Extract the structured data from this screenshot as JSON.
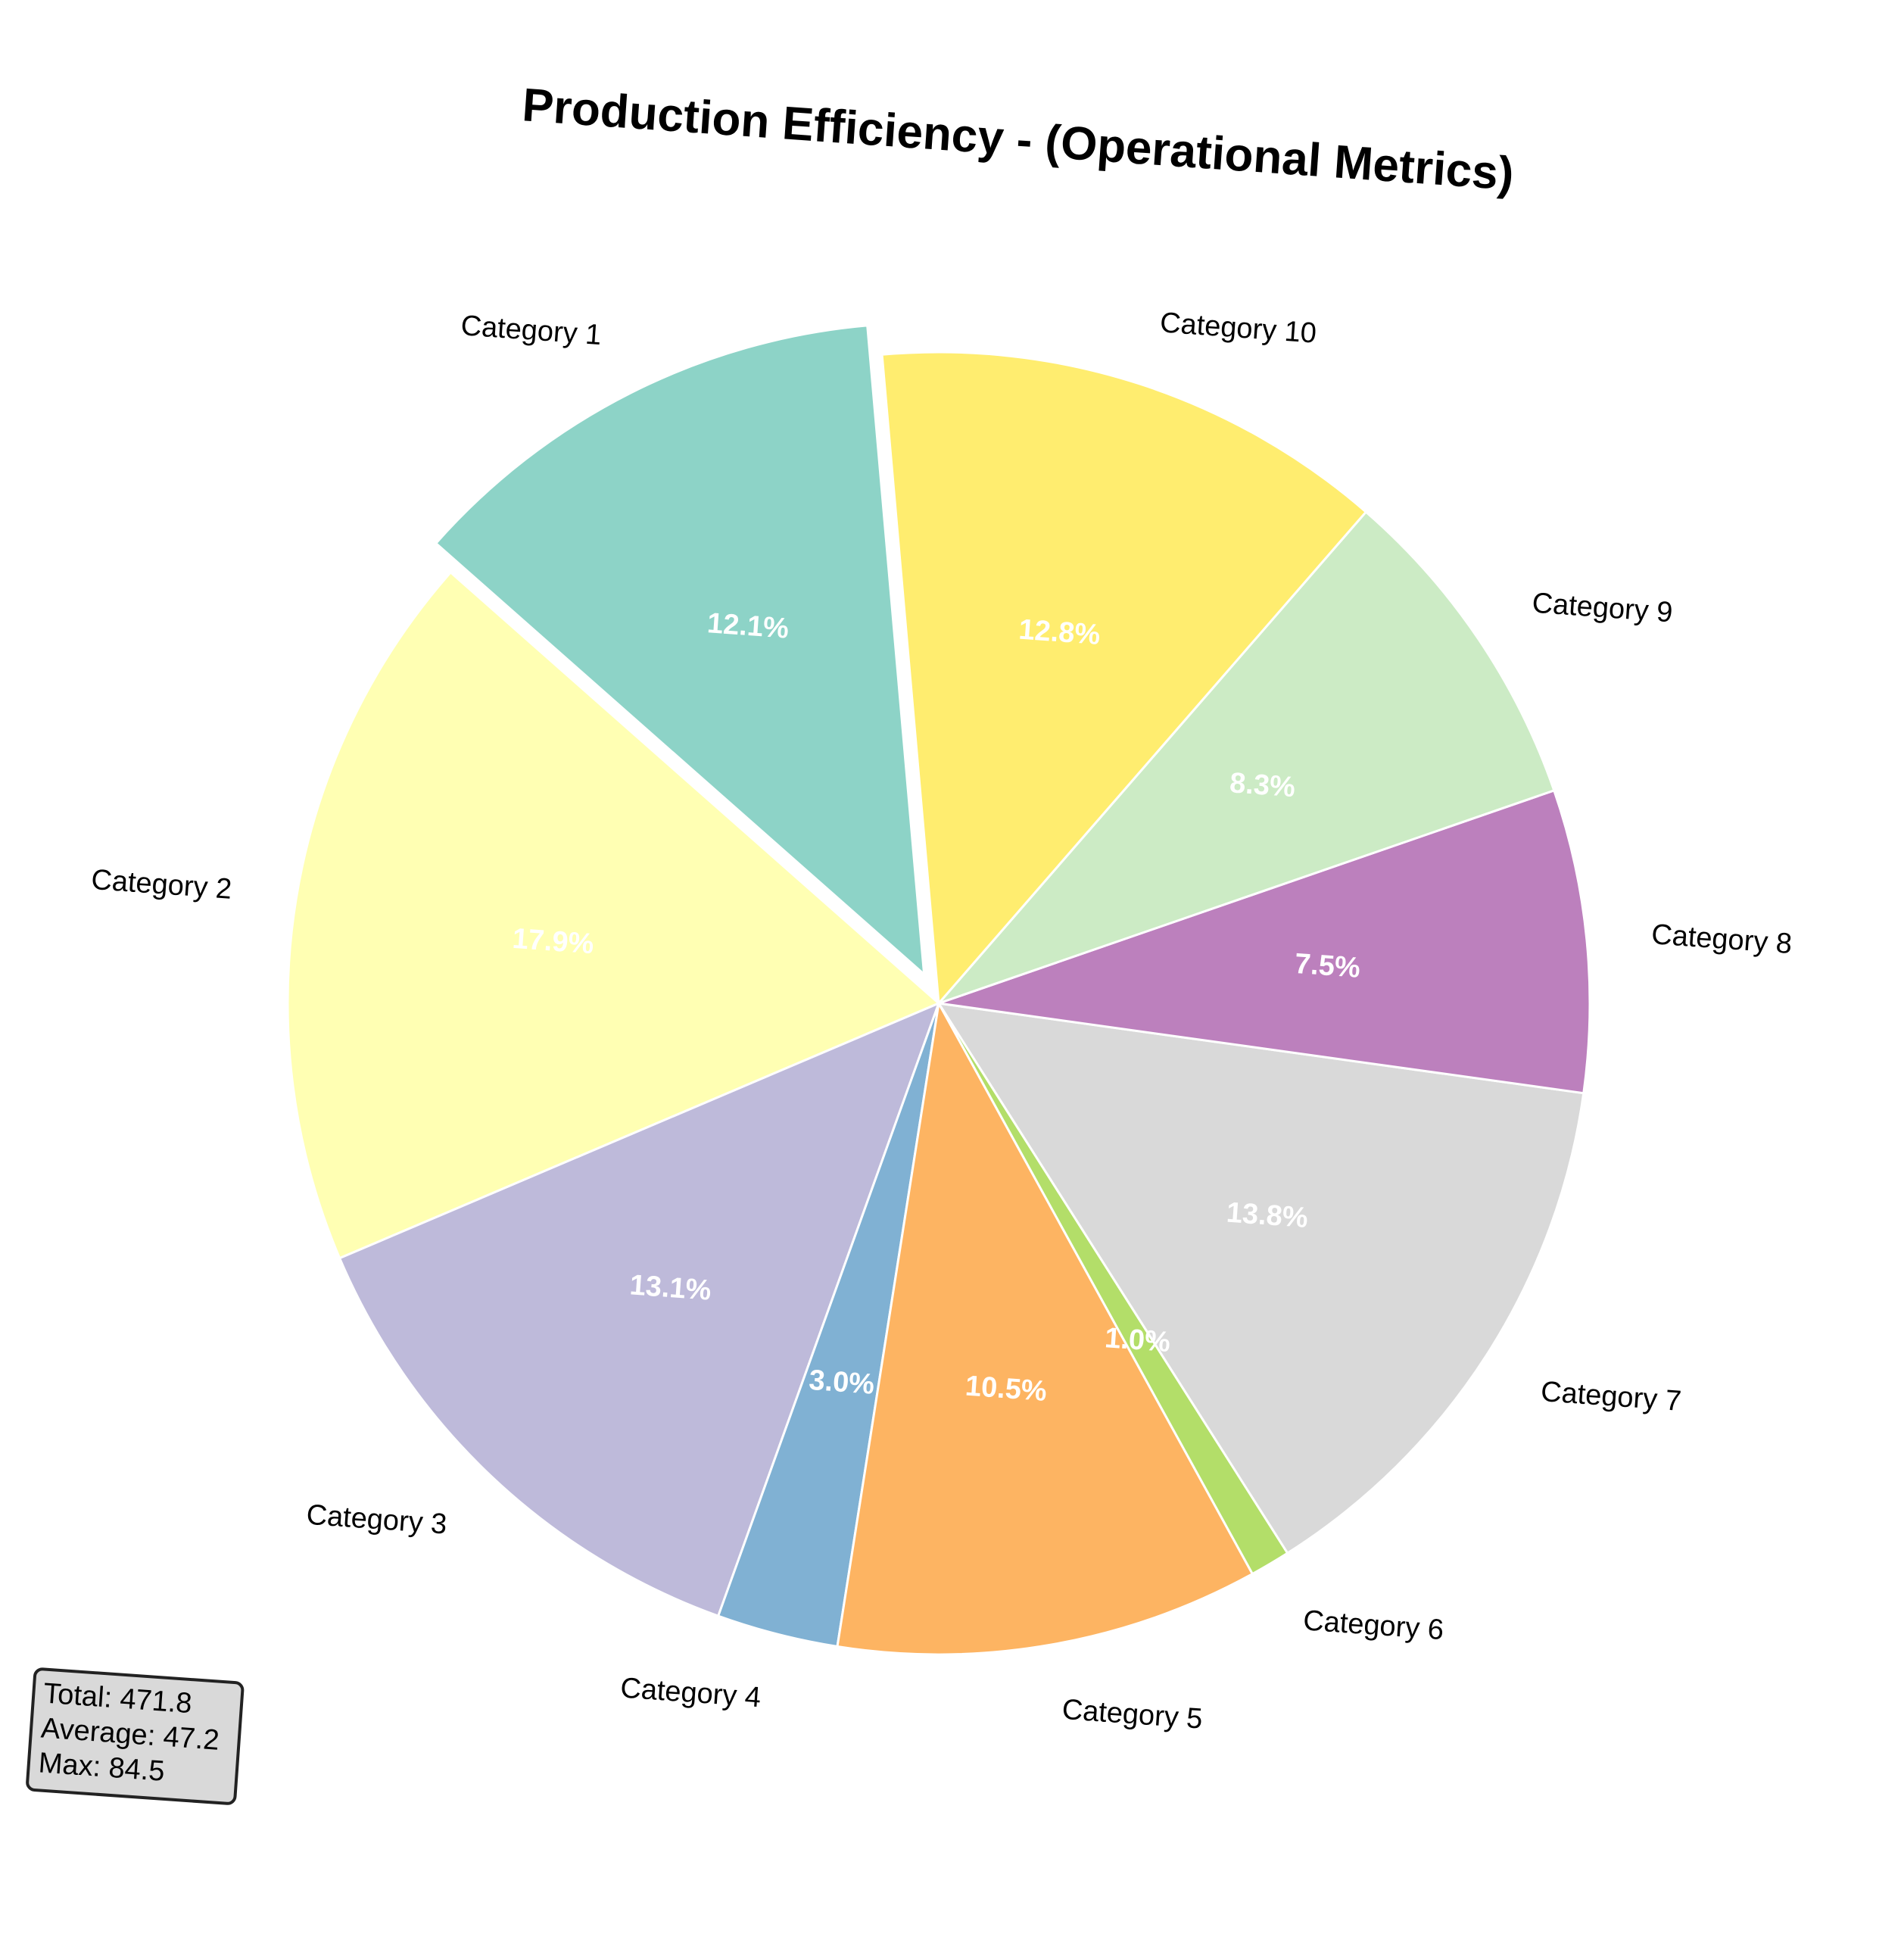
{
  "chart_data": {
    "type": "pie",
    "title": "Production Efficiency - (Operational Metrics)",
    "categories": [
      "Category 1",
      "Category 2",
      "Category 3",
      "Category 4",
      "Category 5",
      "Category 6",
      "Category 7",
      "Category 8",
      "Category 9",
      "Category 10"
    ],
    "values": [
      57.1,
      84.5,
      61.8,
      14.2,
      49.5,
      4.7,
      65.1,
      35.4,
      39.2,
      60.3
    ],
    "percent_labels": [
      "12.1%",
      "17.9%",
      "13.1%",
      "3.0%",
      "10.5%",
      "1.0%",
      "13.8%",
      "7.5%",
      "8.3%",
      "12.8%"
    ],
    "colors": [
      "#8dd3c7",
      "#ffffb3",
      "#bebada",
      "#80b1d3",
      "#fdb462",
      "#b3de69",
      "#d9d9d9",
      "#bc80bd",
      "#ccebc5",
      "#ffed6f"
    ],
    "exploded": [
      "Category 1"
    ],
    "start_direction": "counter-clockwise from top",
    "stats_box": {
      "total": "Total: 471.8",
      "average": "Average: 47.2",
      "max": "Max: 84.5"
    }
  }
}
